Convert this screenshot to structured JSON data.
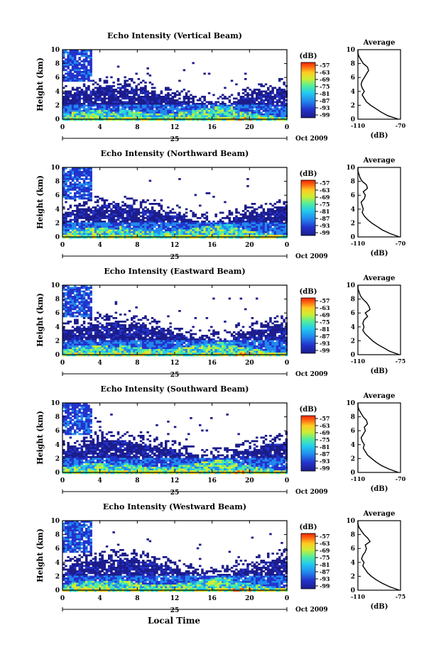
{
  "figure": {
    "x_axis_title": "Local Time",
    "x_ticks": [
      "0",
      "4",
      "8",
      "12",
      "16",
      "20",
      "0"
    ],
    "y_label": "Height (km)",
    "y_ticks": [
      "0",
      "2",
      "4",
      "6",
      "8",
      "10"
    ],
    "colorbar_unit": "(dB)",
    "colorbar_ticks": [
      "-57",
      "-63",
      "-69",
      "-75",
      "-81",
      "-87",
      "-93",
      "-99"
    ],
    "avg_title": "Average",
    "avg_xlabel": "(dB)",
    "colors": {
      "low": "#1a1aa0",
      "mid": "#33ccff",
      "high": "#ff3300"
    }
  },
  "chart_data": [
    {
      "type": "heatmap",
      "title": "Echo Intensity (Vertical Beam)",
      "date_label": "25",
      "month_label": "Oct 2009",
      "xlim": [
        0,
        24
      ],
      "ylim": [
        0,
        10
      ],
      "clim": [
        -99,
        -57
      ],
      "avg_profile": {
        "xticks": [
          "-110",
          "-70"
        ],
        "xlim": [
          -110,
          -70
        ],
        "height": [
          0,
          0.5,
          1,
          1.5,
          2,
          2.5,
          3,
          3.5,
          4,
          4.5,
          5,
          5.5,
          6,
          6.5,
          7,
          7.5,
          8,
          8.5,
          9,
          9.5,
          10
        ],
        "db": [
          -72,
          -82,
          -88,
          -93,
          -98,
          -102,
          -104,
          -106,
          -104,
          -106,
          -107,
          -106,
          -104,
          -102,
          -100,
          -101,
          -105,
          -107,
          -109,
          -110,
          -110
        ]
      }
    },
    {
      "type": "heatmap",
      "title": "Echo Intensity (Northward Beam)",
      "date_label": "25",
      "month_label": "Oct 2009",
      "xlim": [
        0,
        24
      ],
      "ylim": [
        0,
        10
      ],
      "clim": [
        -99,
        -57
      ],
      "avg_profile": {
        "xticks": [
          "-110",
          "-70"
        ],
        "xlim": [
          -110,
          -70
        ],
        "height": [
          0,
          0.5,
          1,
          1.5,
          2,
          2.5,
          3,
          3.5,
          4,
          4.5,
          5,
          5.5,
          6,
          6.5,
          7,
          7.5,
          8,
          8.5,
          9,
          9.5,
          10
        ],
        "db": [
          -71,
          -80,
          -87,
          -92,
          -97,
          -101,
          -104,
          -106,
          -105,
          -106,
          -107,
          -104,
          -103,
          -105,
          -101,
          -102,
          -106,
          -108,
          -109,
          -110,
          -110
        ]
      }
    },
    {
      "type": "heatmap",
      "title": "Echo Intensity (Eastward Beam)",
      "date_label": "25",
      "month_label": "Oct 2009",
      "xlim": [
        0,
        24
      ],
      "ylim": [
        0,
        10
      ],
      "clim": [
        -99,
        -57
      ],
      "avg_profile": {
        "xticks": [
          "-110",
          "-75"
        ],
        "xlim": [
          -110,
          -75
        ],
        "height": [
          0,
          0.5,
          1,
          1.5,
          2,
          2.5,
          3,
          3.5,
          4,
          4.5,
          5,
          5.5,
          6,
          6.5,
          7,
          7.5,
          8,
          8.5,
          9,
          9.5,
          10
        ],
        "db": [
          -76,
          -84,
          -89,
          -94,
          -98,
          -101,
          -104,
          -106,
          -105,
          -106,
          -105,
          -102,
          -104,
          -100,
          -101,
          -103,
          -106,
          -108,
          -109,
          -110,
          -110
        ]
      }
    },
    {
      "type": "heatmap",
      "title": "Echo Intensity (Southward Beam)",
      "date_label": "25",
      "month_label": "Oct 2009",
      "xlim": [
        0,
        24
      ],
      "ylim": [
        0,
        10
      ],
      "clim": [
        -99,
        -57
      ],
      "avg_profile": {
        "xticks": [
          "-110",
          "-70"
        ],
        "xlim": [
          -110,
          -70
        ],
        "height": [
          0,
          0.5,
          1,
          1.5,
          2,
          2.5,
          3,
          3.5,
          4,
          4.5,
          5,
          5.5,
          6,
          6.5,
          7,
          7.5,
          8,
          8.5,
          9,
          9.5,
          10
        ],
        "db": [
          -72,
          -81,
          -88,
          -93,
          -97,
          -101,
          -103,
          -105,
          -104,
          -106,
          -107,
          -105,
          -103,
          -104,
          -101,
          -102,
          -105,
          -107,
          -109,
          -110,
          -110
        ]
      }
    },
    {
      "type": "heatmap",
      "title": "Echo Intensity (Westward Beam)",
      "date_label": "25",
      "month_label": "Oct 2009",
      "xlim": [
        0,
        24
      ],
      "ylim": [
        0,
        10
      ],
      "clim": [
        -99,
        -57
      ],
      "avg_profile": {
        "xticks": [
          "-110",
          "-75"
        ],
        "xlim": [
          -110,
          -75
        ],
        "height": [
          0,
          0.5,
          1,
          1.5,
          2,
          2.5,
          3,
          3.5,
          4,
          4.5,
          5,
          5.5,
          6,
          6.5,
          7,
          7.5,
          8,
          8.5,
          9,
          9.5,
          10
        ],
        "db": [
          -76,
          -84,
          -90,
          -95,
          -99,
          -102,
          -104,
          -106,
          -105,
          -107,
          -106,
          -104,
          -103,
          -104,
          -100,
          -102,
          -105,
          -107,
          -109,
          -110,
          -110
        ]
      }
    }
  ]
}
